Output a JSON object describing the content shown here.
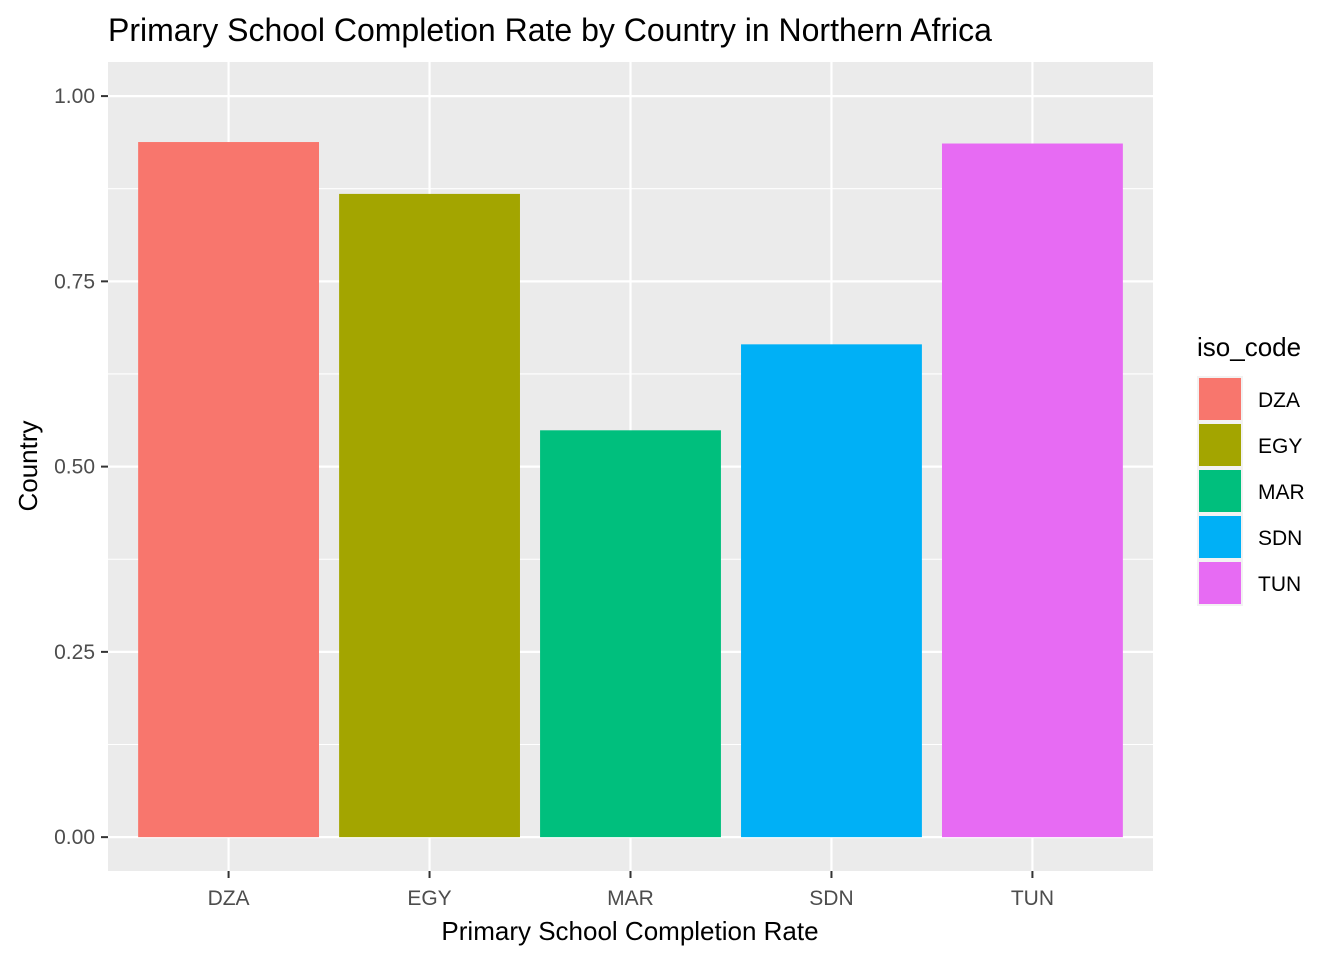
{
  "chart_data": {
    "type": "bar",
    "title": "Primary School Completion Rate by Country in Northern Africa",
    "xlabel": "Primary School Completion Rate",
    "ylabel": "Country",
    "categories": [
      "DZA",
      "EGY",
      "MAR",
      "SDN",
      "TUN"
    ],
    "values": [
      0.938,
      0.868,
      0.549,
      0.665,
      0.936
    ],
    "colors": [
      "#F8766D",
      "#A3A500",
      "#00BF7D",
      "#00B0F6",
      "#E76BF3"
    ],
    "ylim": [
      -0.0457,
      1.046
    ],
    "yticks": [
      0.0,
      0.25,
      0.5,
      0.75,
      1.0
    ],
    "ytick_labels": [
      "0.00",
      "0.25",
      "0.50",
      "0.75",
      "1.00"
    ],
    "grid": true,
    "panel_background": "#EBEBEB",
    "legend": {
      "title": "iso_code",
      "placement": "right",
      "entries": [
        "DZA",
        "EGY",
        "MAR",
        "SDN",
        "TUN"
      ]
    }
  }
}
